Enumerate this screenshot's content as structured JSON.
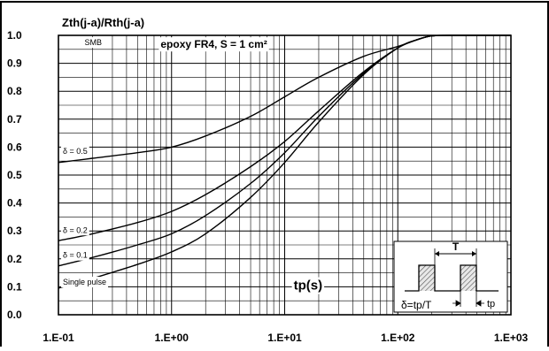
{
  "chart_data": {
    "type": "line",
    "title": "Zth(j-a)/Rth(j-a)",
    "xlabel": "tp(s)",
    "ylabel": "",
    "x_scale": "log",
    "xlim": [
      0.1,
      1000
    ],
    "ylim": [
      0.0,
      1.0
    ],
    "grid": true,
    "x_tick_labels": [
      "1.E-01",
      "1.E+00",
      "1.E+01",
      "1.E+02",
      "1.E+03"
    ],
    "x_ticks": [
      0.1,
      1,
      10,
      100,
      1000
    ],
    "y_ticks": [
      0.0,
      0.1,
      0.2,
      0.3,
      0.4,
      0.5,
      0.6,
      0.7,
      0.8,
      0.9,
      1.0
    ],
    "y_tick_labels": [
      "0.0",
      "0.1",
      "0.2",
      "0.3",
      "0.4",
      "0.5",
      "0.6",
      "0.7",
      "0.8",
      "0.9",
      "1.0"
    ],
    "annotations": {
      "package": "SMB",
      "board": "epoxy FR4, S = 1 cm²",
      "inset_period": "T",
      "inset_duty": "δ=tp/T",
      "inset_pulse": "tp"
    },
    "series": [
      {
        "name": "δ = 0.5",
        "x": [
          0.1,
          0.2,
          0.5,
          1,
          2,
          5,
          10,
          20,
          50,
          100,
          150,
          200,
          300,
          1000
        ],
        "y": [
          0.545,
          0.56,
          0.58,
          0.6,
          0.64,
          0.71,
          0.78,
          0.85,
          0.925,
          0.96,
          0.985,
          0.998,
          1.0,
          1.0
        ]
      },
      {
        "name": "δ = 0.2",
        "x": [
          0.1,
          0.2,
          0.5,
          1,
          2,
          5,
          10,
          20,
          50,
          100,
          150,
          200,
          300,
          1000
        ],
        "y": [
          0.265,
          0.29,
          0.33,
          0.37,
          0.43,
          0.53,
          0.62,
          0.73,
          0.87,
          0.955,
          0.985,
          0.998,
          1.0,
          1.0
        ]
      },
      {
        "name": "δ = 0.1",
        "x": [
          0.1,
          0.2,
          0.5,
          1,
          2,
          5,
          10,
          20,
          50,
          100,
          150,
          200,
          300,
          1000
        ],
        "y": [
          0.175,
          0.205,
          0.25,
          0.29,
          0.355,
          0.47,
          0.58,
          0.71,
          0.865,
          0.955,
          0.985,
          0.998,
          1.0,
          1.0
        ]
      },
      {
        "name": "Single pulse",
        "x": [
          0.1,
          0.2,
          0.5,
          1,
          2,
          5,
          10,
          20,
          50,
          100,
          150,
          200,
          300,
          1000
        ],
        "y": [
          0.095,
          0.13,
          0.18,
          0.225,
          0.29,
          0.42,
          0.545,
          0.69,
          0.86,
          0.955,
          0.985,
          0.998,
          1.0,
          1.0
        ]
      }
    ]
  }
}
